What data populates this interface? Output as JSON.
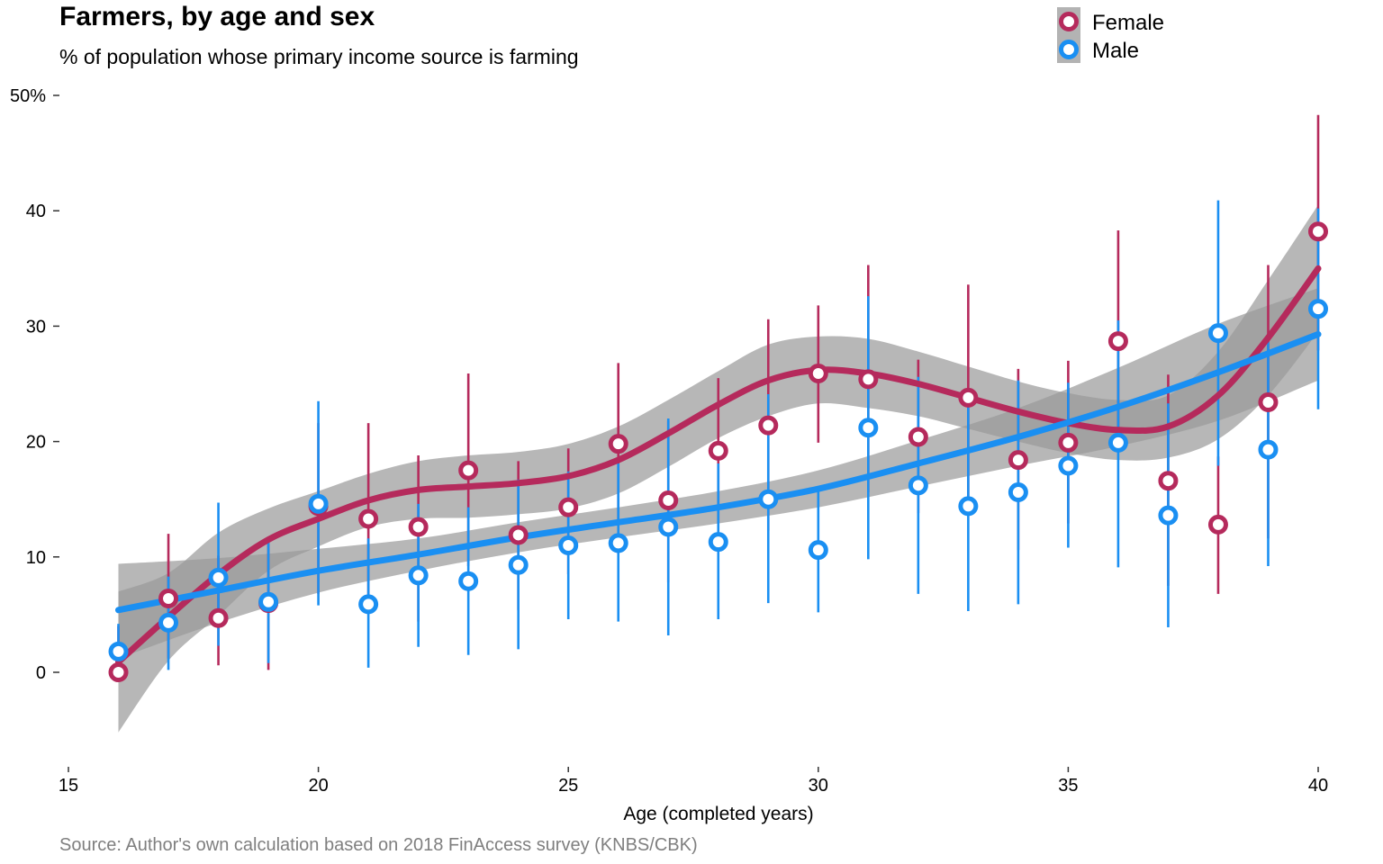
{
  "chart_data": {
    "type": "scatter",
    "title": "Farmers, by age and sex",
    "subtitle": "% of population whose primary income source is farming",
    "xlabel": "Age (completed years)",
    "ylabel": "",
    "caption": "Source: Author's own calculation based on 2018 FinAccess survey (KNBS/CBK)",
    "xlim": [
      15,
      40
    ],
    "ylim": [
      -8,
      50
    ],
    "x_ticks": [
      15,
      20,
      25,
      30,
      35,
      40
    ],
    "y_ticks": [
      0,
      10,
      20,
      30,
      40,
      50
    ],
    "y_tick_labels": [
      "0",
      "10",
      "20",
      "30",
      "40",
      "50%"
    ],
    "legend": {
      "position": "top-right",
      "entries": [
        "Female",
        "Male"
      ]
    },
    "grid": false,
    "series": [
      {
        "name": "Female",
        "color": "#b52a5c",
        "x": [
          16,
          17,
          18,
          19,
          20,
          21,
          22,
          23,
          24,
          25,
          26,
          27,
          28,
          29,
          30,
          31,
          32,
          33,
          34,
          35,
          36,
          37,
          38,
          39,
          40
        ],
        "y": [
          0,
          6.4,
          4.7,
          6.0,
          14.4,
          13.3,
          12.6,
          17.5,
          11.9,
          14.3,
          19.8,
          14.9,
          19.2,
          21.4,
          25.9,
          25.4,
          20.4,
          23.8,
          18.4,
          19.9,
          28.7,
          16.6,
          12.8,
          23.4,
          38.2
        ],
        "err_low": [
          0,
          1.2,
          0.6,
          0.2,
          6.8,
          5.6,
          4.4,
          9.2,
          5.4,
          8.5,
          13.0,
          7.8,
          12.9,
          12.3,
          19.9,
          15.6,
          13.8,
          14.0,
          10.6,
          12.9,
          19.2,
          7.5,
          6.8,
          11.6,
          27.9
        ],
        "err_high": [
          4.0,
          12.0,
          10.1,
          11.6,
          21.6,
          21.6,
          18.8,
          25.9,
          18.3,
          19.4,
          26.8,
          21.8,
          25.5,
          30.6,
          31.8,
          35.3,
          27.1,
          33.6,
          26.3,
          27.0,
          38.3,
          25.8,
          18.7,
          35.3,
          48.3
        ],
        "smooth": {
          "x": [
            16,
            17,
            18,
            19,
            20,
            21,
            22,
            23,
            24,
            25,
            26,
            27,
            28,
            29,
            30,
            31,
            32,
            33,
            34,
            35,
            36,
            37,
            38,
            39,
            40
          ],
          "y": [
            0.9,
            4.8,
            8.5,
            11.5,
            13.3,
            14.9,
            15.8,
            16.1,
            16.4,
            17.0,
            18.4,
            20.7,
            23.2,
            25.3,
            26.2,
            25.9,
            25.0,
            23.8,
            22.6,
            21.6,
            21.0,
            21.3,
            24.0,
            29.0,
            35.0
          ],
          "lower": [
            -5.2,
            1.0,
            4.9,
            8.8,
            10.9,
            12.6,
            13.3,
            13.4,
            13.7,
            14.2,
            15.5,
            17.8,
            20.3,
            22.2,
            23.3,
            22.9,
            22.2,
            21.1,
            20.0,
            19.0,
            18.4,
            18.6,
            20.2,
            24.0,
            29.5
          ],
          "upper": [
            7.0,
            8.6,
            12.1,
            14.2,
            15.7,
            17.2,
            18.3,
            18.8,
            19.1,
            19.8,
            21.3,
            23.6,
            26.1,
            28.4,
            29.1,
            28.9,
            27.8,
            26.5,
            25.2,
            24.2,
            23.6,
            24.0,
            27.8,
            34.0,
            40.5
          ]
        }
      },
      {
        "name": "Male",
        "color": "#1a8ff2",
        "x": [
          16,
          17,
          18,
          19,
          20,
          21,
          22,
          23,
          24,
          25,
          26,
          27,
          28,
          29,
          30,
          31,
          32,
          33,
          34,
          35,
          36,
          37,
          38,
          39,
          40
        ],
        "y": [
          1.8,
          4.3,
          8.2,
          6.1,
          14.6,
          5.9,
          8.4,
          7.9,
          9.3,
          11.0,
          11.2,
          12.6,
          11.3,
          15.0,
          10.6,
          21.2,
          16.2,
          14.4,
          15.6,
          17.9,
          19.9,
          13.6,
          29.4,
          19.3,
          31.5
        ],
        "err_low": [
          0,
          0.2,
          2.3,
          0.8,
          5.8,
          0.4,
          2.2,
          1.5,
          2.0,
          4.6,
          4.4,
          3.2,
          4.6,
          6.0,
          5.2,
          9.8,
          6.8,
          5.3,
          5.9,
          10.8,
          9.1,
          3.9,
          17.9,
          9.2,
          22.8
        ],
        "err_high": [
          4.2,
          8.3,
          14.7,
          11.4,
          23.5,
          11.6,
          14.6,
          14.3,
          16.7,
          17.4,
          18.1,
          22.0,
          18.1,
          24.1,
          15.8,
          32.6,
          25.6,
          23.5,
          25.3,
          25.1,
          30.5,
          23.3,
          40.9,
          29.2,
          40.2
        ],
        "smooth": {
          "x": [
            16,
            18,
            20,
            22,
            24,
            26,
            28,
            30,
            32,
            34,
            36,
            38,
            40
          ],
          "y": [
            5.4,
            7.1,
            8.8,
            10.2,
            11.7,
            13.0,
            14.3,
            15.9,
            18.1,
            20.4,
            23.0,
            26.0,
            29.3
          ],
          "lower": [
            1.2,
            4.3,
            6.9,
            8.8,
            10.4,
            11.7,
            12.9,
            14.3,
            16.1,
            17.9,
            19.6,
            21.8,
            25.3
          ],
          "upper": [
            9.4,
            9.9,
            10.7,
            11.6,
            13.0,
            14.3,
            15.7,
            17.5,
            20.1,
            22.9,
            26.4,
            30.2,
            33.3
          ]
        }
      }
    ]
  }
}
